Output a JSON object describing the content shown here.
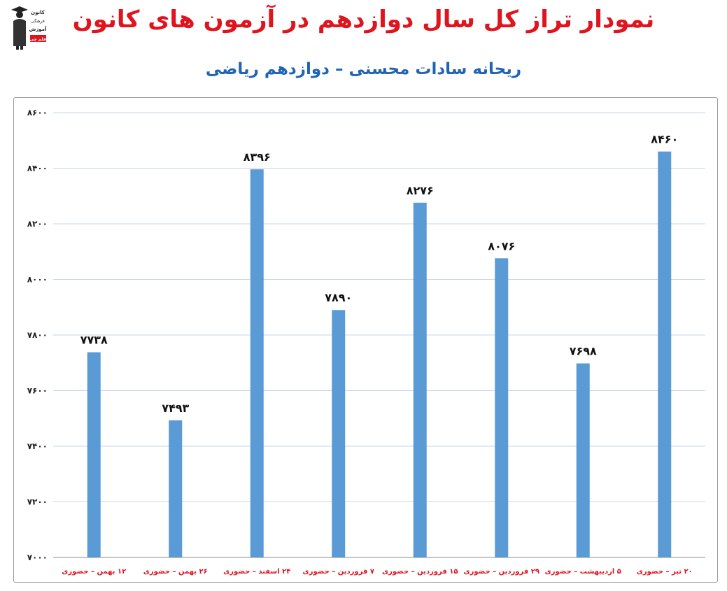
{
  "title": "نمودار تراز کل سال دوازدهم در آزمون های کانون",
  "subtitle": "ریحانه سادات محسنی – دوازدهم ریاضی",
  "logo": {
    "lines": [
      "کانون",
      "فرهنگی",
      "آموزش",
      "قلم چی"
    ],
    "icon": "graduate-figure-icon"
  },
  "colors": {
    "title": "#e0141e",
    "subtitle": "#1f64b4",
    "bar": "#5b9bd5",
    "category_label": "#e0141e",
    "gridline": "#c6d5ea"
  },
  "chart_data": {
    "type": "bar",
    "categories": [
      "۱۲ بهمن – حضوری",
      "۲۶ بهمن – حضوری",
      "۲۴ اسفند – حضوری",
      "۷ فروردین – حضوری",
      "۱۵ فروردین – حضوری",
      "۲۹ فروردین – حضوری",
      "۵ اردیبهشت – حضوری",
      "۲۰ تیر – حضوری"
    ],
    "values": [
      7738,
      7493,
      8396,
      7890,
      8276,
      8076,
      7698,
      8460
    ],
    "value_labels": [
      "۷۷۳۸",
      "۷۴۹۳",
      "۸۳۹۶",
      "۷۸۹۰",
      "۸۲۷۶",
      "۸۰۷۶",
      "۷۶۹۸",
      "۸۴۶۰"
    ],
    "y_ticks": [
      7000,
      7200,
      7400,
      7600,
      7800,
      8000,
      8200,
      8400,
      8600
    ],
    "y_tick_labels": [
      "۷۰۰۰",
      "۷۲۰۰",
      "۷۴۰۰",
      "۷۶۰۰",
      "۷۸۰۰",
      "۸۰۰۰",
      "۸۲۰۰",
      "۸۴۰۰",
      "۸۶۰۰"
    ],
    "ylim": [
      7000,
      8600
    ],
    "grid": true,
    "legend": "none",
    "xlabel": "",
    "ylabel": ""
  }
}
